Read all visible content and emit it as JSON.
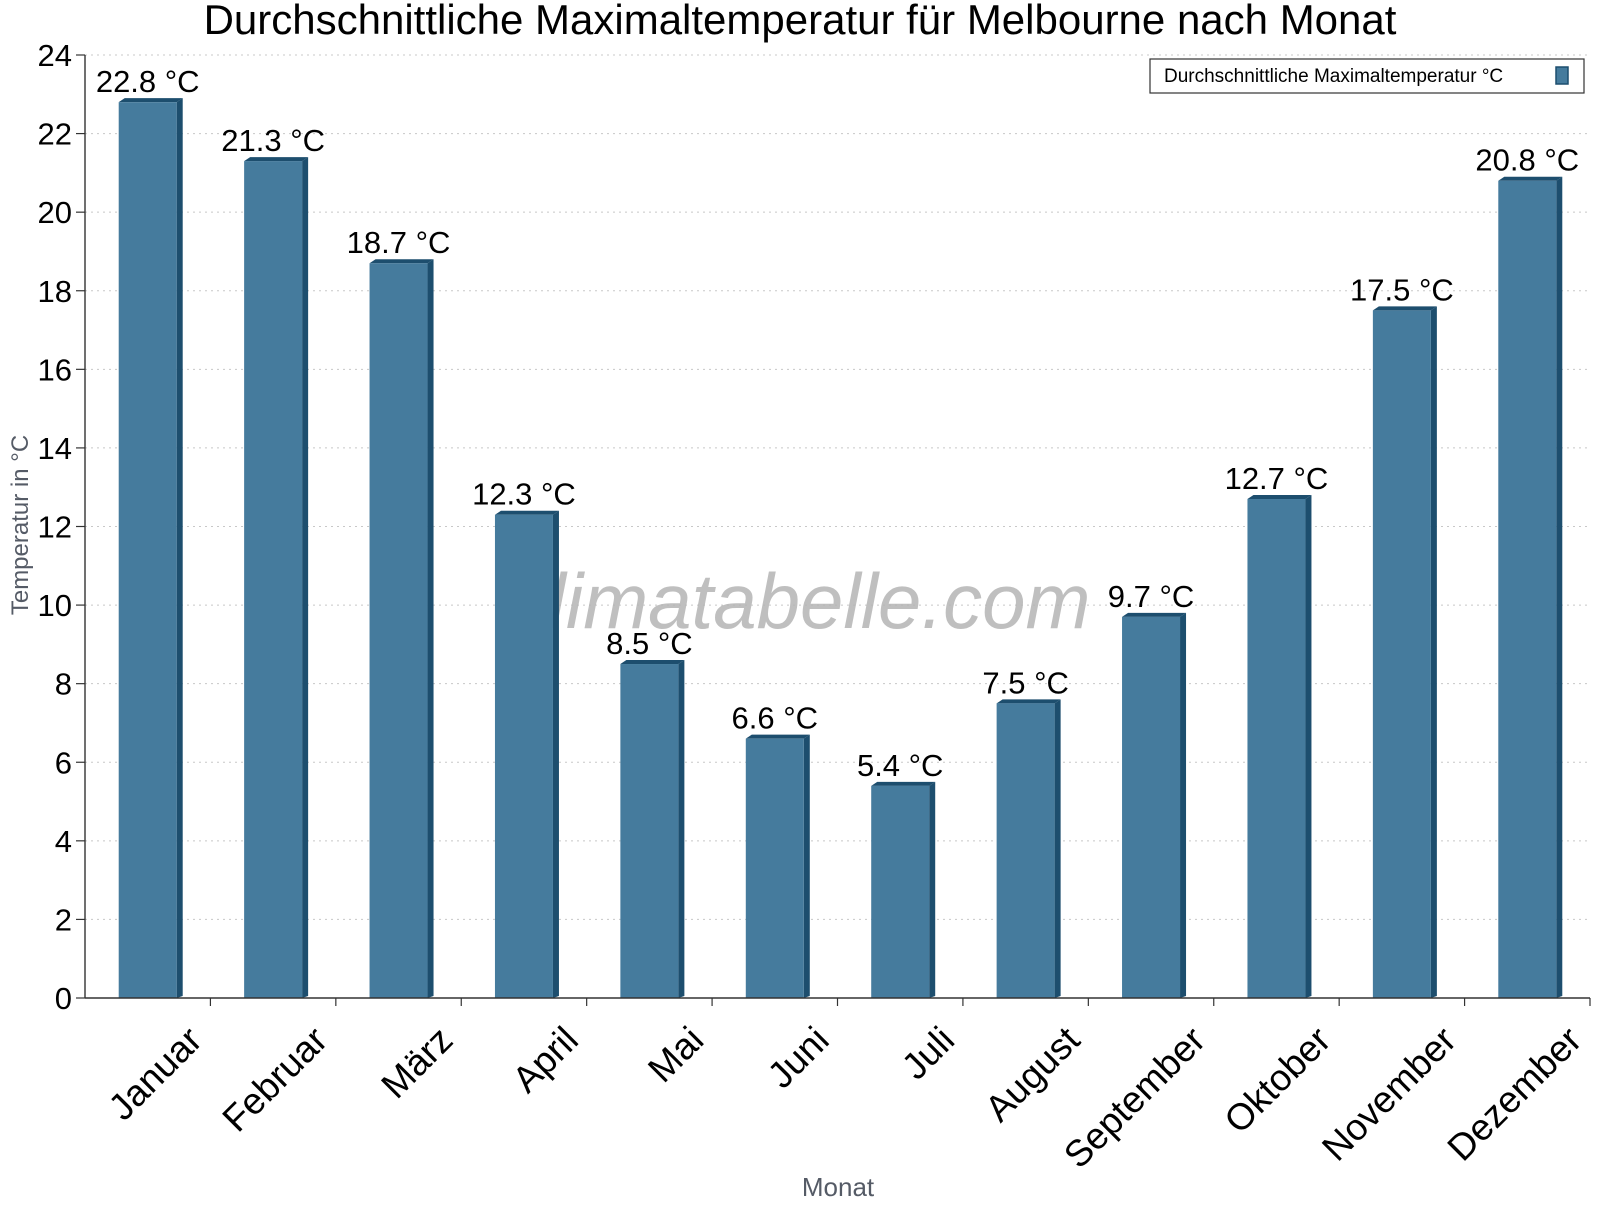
{
  "chart_data": {
    "type": "bar",
    "title": "Durchschnittliche Maximaltemperatur für Melbourne nach Monat",
    "xlabel": "Monat",
    "ylabel": "Temperatur in °C",
    "categories": [
      "Januar",
      "Februar",
      "März",
      "April",
      "Mai",
      "Juni",
      "Juli",
      "August",
      "September",
      "Oktober",
      "November",
      "Dezember"
    ],
    "series": [
      {
        "name": "Durchschnittliche Maximaltemperatur °C",
        "values": [
          22.8,
          21.3,
          18.7,
          12.3,
          8.5,
          6.6,
          5.4,
          7.5,
          9.7,
          12.7,
          17.5,
          20.8
        ],
        "labels": [
          "22.8 °C",
          "21.3 °C",
          "18.7 °C",
          "12.3 °C",
          "8.5 °C",
          "6.6 °C",
          "5.4 °C",
          "7.5 °C",
          "9.7 °C",
          "12.7 °C",
          "17.5 °C",
          "20.8 °C"
        ],
        "color": "#457b9d",
        "shade_color": "#1d4e6e"
      }
    ],
    "ylim": [
      0,
      24
    ],
    "yticks": [
      0,
      2,
      4,
      6,
      8,
      10,
      12,
      14,
      16,
      18,
      20,
      22,
      24
    ],
    "grid": true,
    "legend_position": "top-right",
    "watermark": "klimatabelle.com"
  }
}
